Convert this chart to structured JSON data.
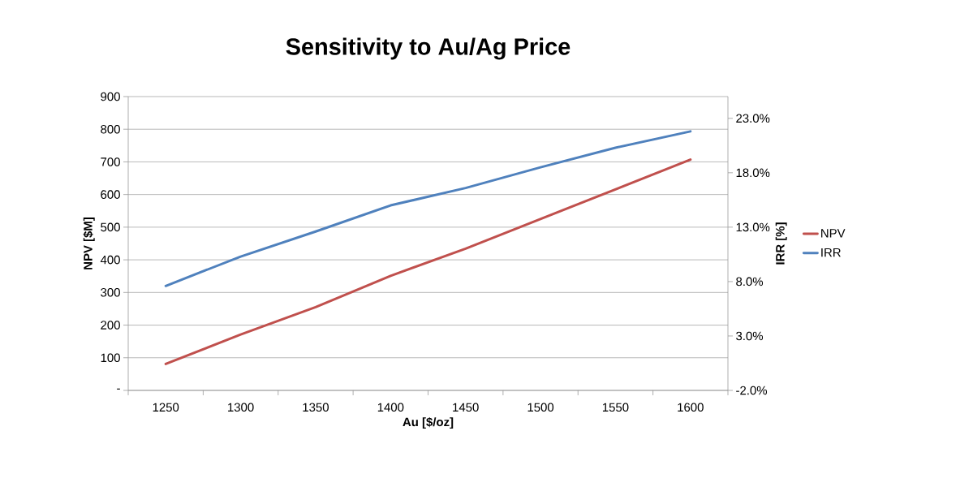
{
  "chart_data": {
    "type": "line",
    "title": "Sensitivity to Au/Ag Price",
    "xlabel": "Au [$/oz]",
    "ylabel": "NPV [$M]",
    "y2label": "IRR [%]",
    "categories": [
      "1250",
      "1300",
      "1350",
      "1400",
      "1450",
      "1500",
      "1550",
      "1600"
    ],
    "series": [
      {
        "name": "NPV",
        "color": "#c0504d",
        "values": [
          81,
          171,
          255,
          351,
          434,
          525,
          616,
          707
        ]
      },
      {
        "name": "IRR",
        "color": "#4f81bd",
        "axis": "y2",
        "values": [
          7.6,
          10.3,
          12.6,
          15.0,
          16.6,
          18.5,
          20.3,
          21.8
        ]
      }
    ],
    "ylim": [
      0,
      900
    ],
    "yticks": [
      {
        "value": 0,
        "label": "-"
      },
      100,
      200,
      300,
      400,
      500,
      600,
      700,
      800,
      900
    ],
    "y2lim": [
      -2,
      25
    ],
    "y2ticks": [
      {
        "value": -2,
        "label": "-2.0%"
      },
      {
        "value": 3,
        "label": "3.0%"
      },
      {
        "value": 8,
        "label": "8.0%"
      },
      {
        "value": 13,
        "label": "13.0%"
      },
      {
        "value": 18,
        "label": "18.0%"
      },
      {
        "value": 23,
        "label": "23.0%"
      }
    ],
    "grid": "y",
    "legend": "right",
    "marker": "none",
    "line_style": "solid"
  }
}
